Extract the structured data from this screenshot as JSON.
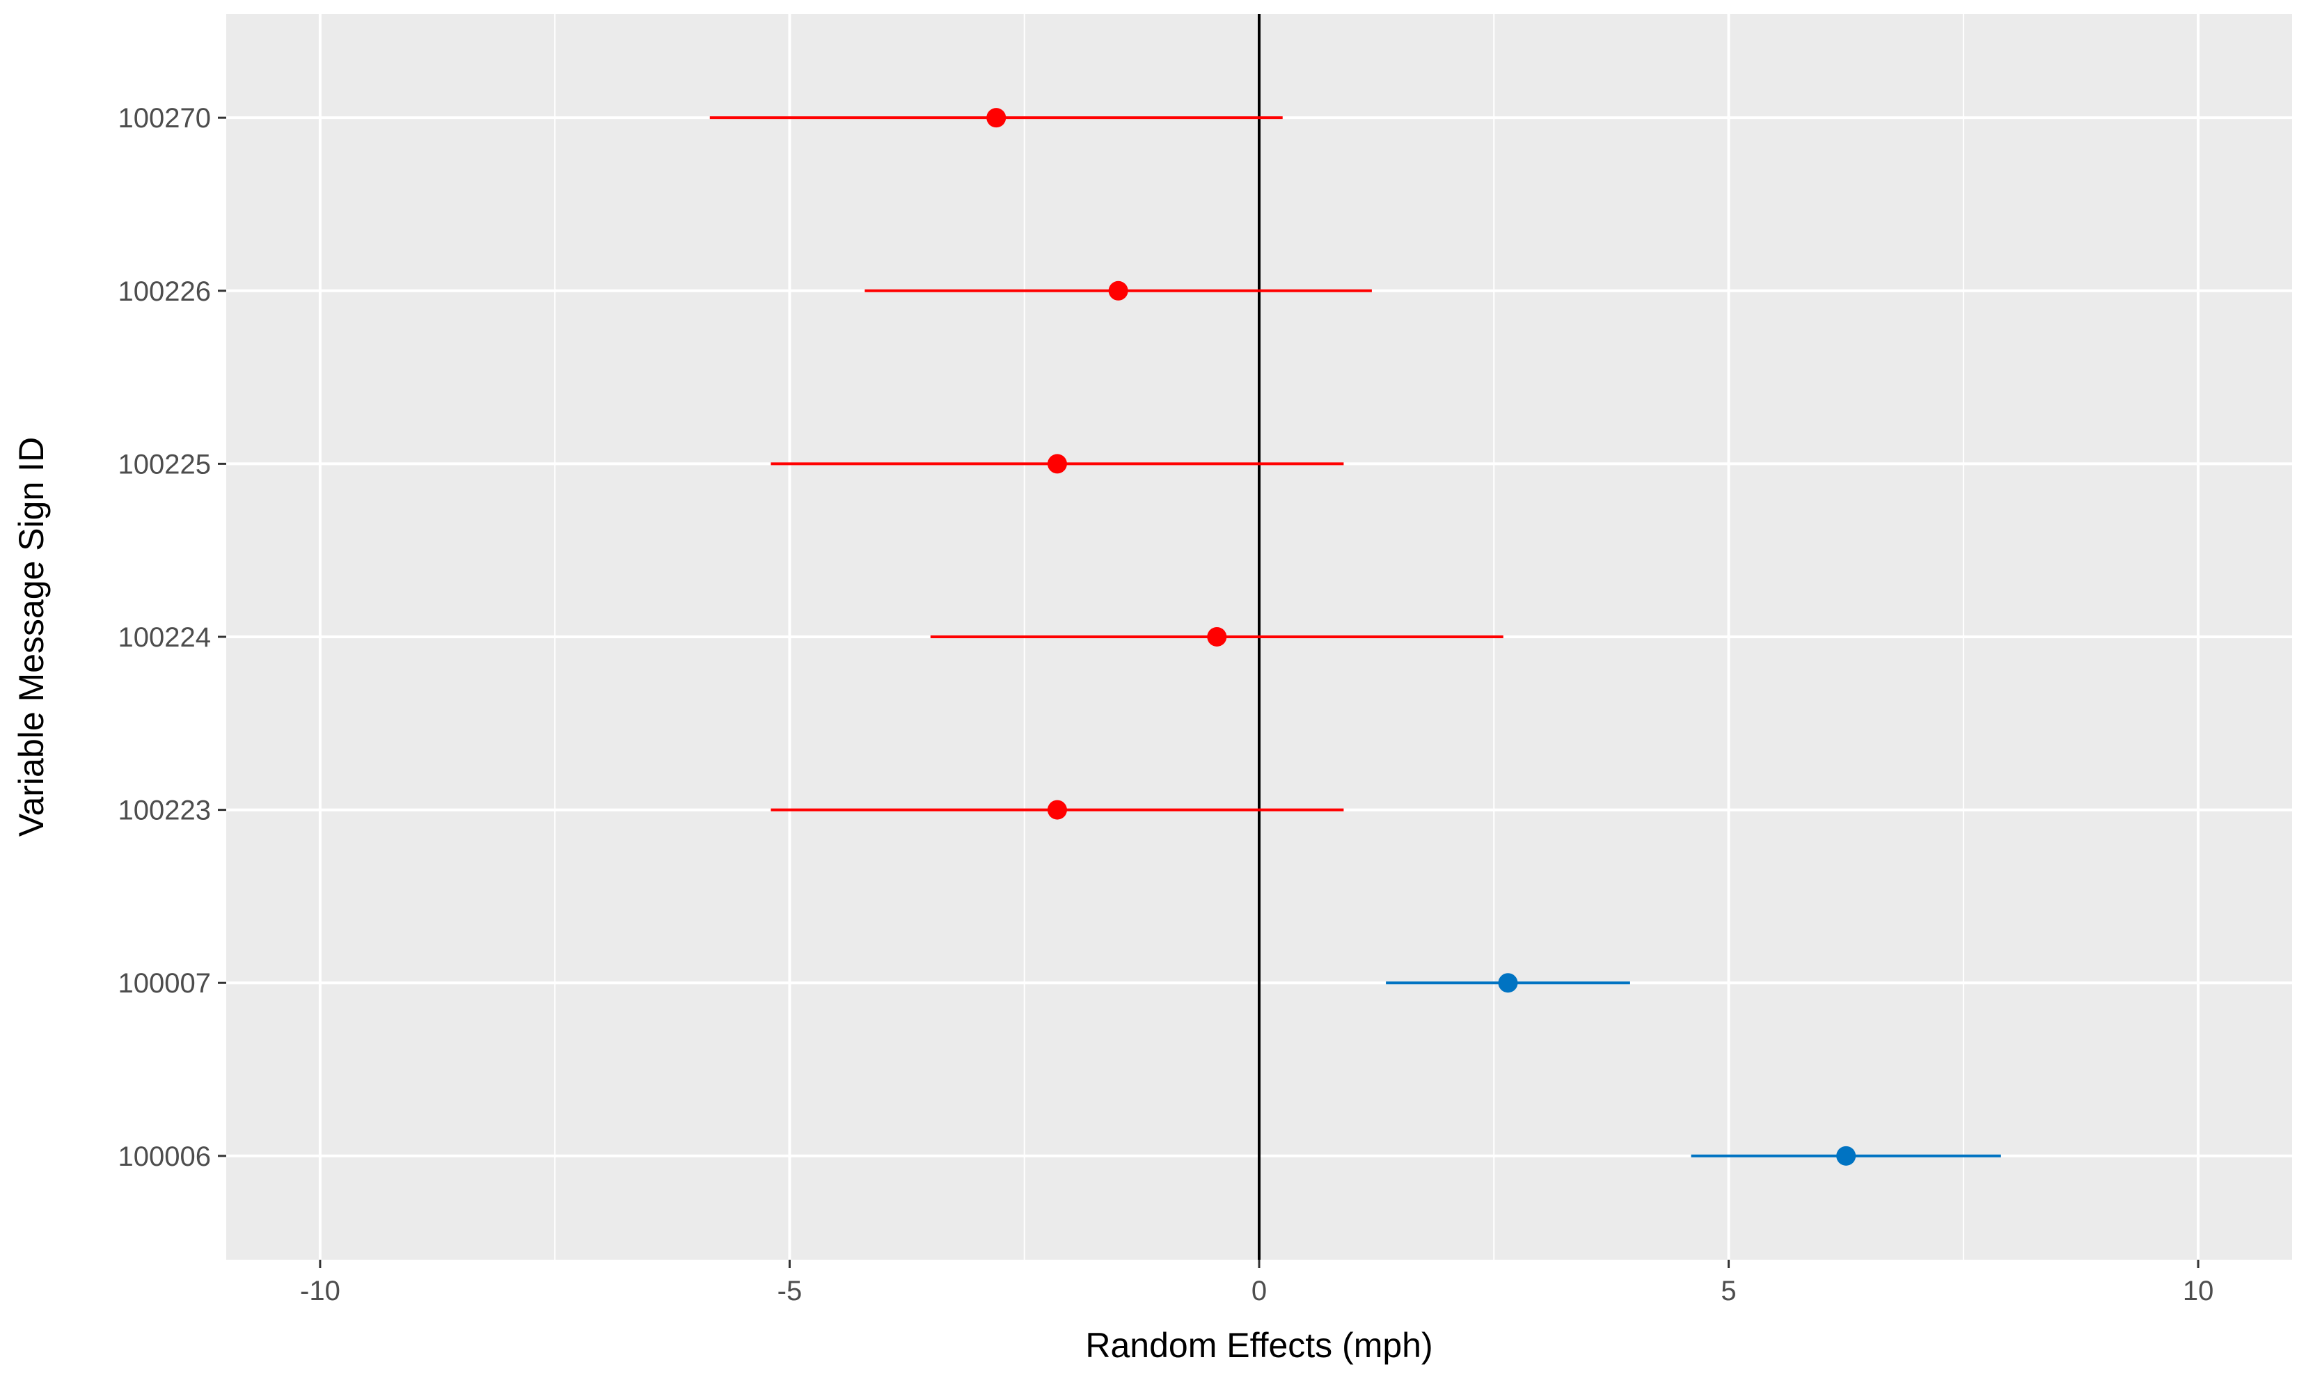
{
  "chart_data": {
    "type": "scatter",
    "subtype": "forest-plot-with-interval-bars",
    "title": "",
    "xlabel": "Random Effects (mph)",
    "ylabel": "Variable Message Sign ID",
    "xlim": [
      -11.0,
      11.0
    ],
    "xticks": [
      -10,
      -5,
      0,
      5,
      10
    ],
    "xtick_labels": [
      "-10",
      "-5",
      "0",
      "5",
      "10"
    ],
    "reference_line_x": 0,
    "grid": true,
    "legend": "none",
    "colors": {
      "negative": "#ff0000",
      "positive": "#0073c2",
      "panel": "#ebebeb",
      "grid": "#ffffff",
      "reference": "#000000"
    },
    "categories": [
      "100270",
      "100226",
      "100225",
      "100224",
      "100223",
      "100007",
      "100006"
    ],
    "points": [
      {
        "id": "100270",
        "estimate": -2.8,
        "lower": -5.85,
        "upper": 0.25,
        "group": "negative"
      },
      {
        "id": "100226",
        "estimate": -1.5,
        "lower": -4.2,
        "upper": 1.2,
        "group": "negative"
      },
      {
        "id": "100225",
        "estimate": -2.15,
        "lower": -5.2,
        "upper": 0.9,
        "group": "negative"
      },
      {
        "id": "100224",
        "estimate": -0.45,
        "lower": -3.5,
        "upper": 2.6,
        "group": "negative"
      },
      {
        "id": "100223",
        "estimate": -2.15,
        "lower": -5.2,
        "upper": 0.9,
        "group": "negative"
      },
      {
        "id": "100007",
        "estimate": 2.65,
        "lower": 1.35,
        "upper": 3.95,
        "group": "positive"
      },
      {
        "id": "100006",
        "estimate": 6.25,
        "lower": 4.6,
        "upper": 7.9,
        "group": "positive"
      }
    ]
  }
}
